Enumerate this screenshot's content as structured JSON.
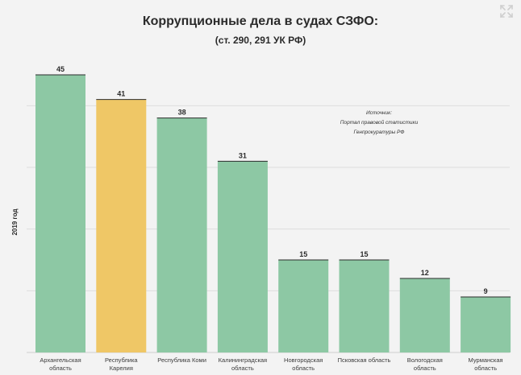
{
  "chart_data": {
    "type": "bar",
    "title": "Коррупционные дела в судах СЗФО:",
    "subtitle": "(ст. 290, 291 УК РФ)",
    "ylabel": "2019 год",
    "xlabel": "",
    "categories": [
      [
        "Архангельская",
        "область"
      ],
      [
        "Республика",
        "Карелия"
      ],
      [
        "Республика Коми"
      ],
      [
        "Калининградская",
        "область"
      ],
      [
        "Новгородская",
        "область"
      ],
      [
        "Псковская область"
      ],
      [
        "Вологодская",
        "область"
      ],
      [
        "Мурманская",
        "область"
      ]
    ],
    "values": [
      45,
      41,
      38,
      31,
      15,
      15,
      12,
      9
    ],
    "highlight_index": 1,
    "ylim": [
      0,
      48
    ],
    "grid": true,
    "annotation": [
      "Источник:",
      "Портал правовой статистики",
      "Генпрокуратуры РФ"
    ],
    "colors": {
      "bar": "#8dc8a4",
      "bar_highlight": "#efc766",
      "grid": "#dedede",
      "text": "#2b2b2b"
    }
  },
  "icons": {
    "expand": "expand-icon"
  }
}
